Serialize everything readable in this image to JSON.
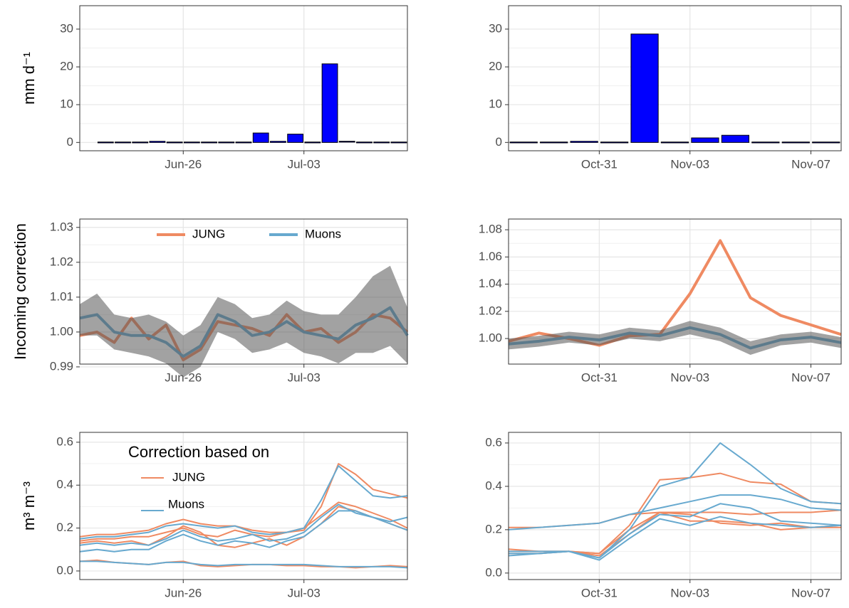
{
  "chart_data": [
    {
      "type": "bar",
      "ylabel": "mm d⁻¹",
      "grid": true,
      "color": "#0000ff",
      "border": "#000000",
      "xlim": [
        "Jun-20",
        "Jul-09"
      ],
      "xticks": [
        "Jun-26",
        "Jul-03"
      ],
      "ylim": [
        -2.2,
        36.2
      ],
      "yticks": [
        0,
        10,
        20,
        30
      ],
      "x": [
        "Jun-21",
        "Jun-22",
        "Jun-23",
        "Jun-24",
        "Jun-25",
        "Jun-26",
        "Jun-27",
        "Jun-28",
        "Jun-29",
        "Jun-30",
        "Jul-01",
        "Jul-02",
        "Jul-03",
        "Jul-04",
        "Jul-05",
        "Jul-06",
        "Jul-07",
        "Jul-08"
      ],
      "values": [
        0,
        0,
        0,
        0.3,
        0,
        0,
        0,
        0,
        0,
        2.5,
        0.3,
        2.2,
        0,
        20.8,
        0.2,
        0,
        0,
        0
      ]
    },
    {
      "type": "bar",
      "grid": true,
      "color": "#0000ff",
      "border": "#000000",
      "xlim": [
        "Oct-28",
        "Nov-08"
      ],
      "xticks": [
        "Oct-31",
        "Nov-03",
        "Nov-07"
      ],
      "ylim": [
        -2.2,
        36.2
      ],
      "yticks": [
        0,
        10,
        20,
        30
      ],
      "x": [
        "Oct-28",
        "Oct-29",
        "Oct-30",
        "Oct-31",
        "Nov-01",
        "Nov-02",
        "Nov-03",
        "Nov-04",
        "Nov-05",
        "Nov-06",
        "Nov-07"
      ],
      "values": [
        0,
        0,
        0.3,
        0,
        28.7,
        0,
        1.2,
        1.9,
        0,
        0,
        0
      ]
    },
    {
      "type": "ribbon-line",
      "ylabel": "Incoming correction",
      "grid": true,
      "legend": "top",
      "band_color": "#555555",
      "xlim": [
        "Jun-20",
        "Jul-09"
      ],
      "xticks": [
        "Jun-26",
        "Jul-03"
      ],
      "ylim": [
        0.9908,
        1.0324
      ],
      "yticks": [
        0.99,
        {
          "value": 1.0,
          "label": "1.00"
        },
        1.01,
        1.02,
        1.03
      ],
      "x": [
        "Jun-20",
        "Jun-21",
        "Jun-22",
        "Jun-23",
        "Jun-24",
        "Jun-25",
        "Jun-26",
        "Jun-27",
        "Jun-28",
        "Jun-29",
        "Jun-30",
        "Jul-01",
        "Jul-02",
        "Jul-03",
        "Jul-04",
        "Jul-05",
        "Jul-06",
        "Jul-07",
        "Jul-08",
        "Jul-09"
      ],
      "series": [
        {
          "name": "JUNG",
          "color": "#ef8a62",
          "values": [
            0.999,
            1.0,
            0.997,
            1.004,
            0.998,
            1.002,
            0.992,
            0.995,
            1.003,
            1.002,
            1.001,
            0.999,
            1.005,
            1.0,
            1.001,
            0.997,
            1.0,
            1.005,
            1.004,
            1.0
          ]
        },
        {
          "name": "Muons",
          "color": "#67a9cf",
          "values": [
            1.004,
            1.005,
            1.0,
            0.999,
            0.999,
            0.997,
            0.993,
            0.996,
            1.005,
            1.003,
            0.999,
            1.0,
            1.003,
            1.0,
            0.999,
            0.998,
            1.002,
            1.004,
            1.007,
            0.999
          ],
          "lower": [
            0.999,
            0.999,
            0.995,
            0.994,
            0.993,
            0.991,
            0.987,
            0.99,
            1.0,
            0.998,
            0.994,
            0.995,
            0.997,
            0.994,
            0.993,
            0.991,
            0.994,
            0.994,
            0.996,
            0.991
          ],
          "upper": [
            1.008,
            1.011,
            1.005,
            1.004,
            1.005,
            1.003,
            0.999,
            1.002,
            1.01,
            1.008,
            1.004,
            1.005,
            1.009,
            1.006,
            1.005,
            1.005,
            1.01,
            1.016,
            1.019,
            1.007
          ]
        }
      ]
    },
    {
      "type": "ribbon-line",
      "grid": true,
      "band_color": "#555555",
      "xlim": [
        "Oct-28",
        "Nov-08"
      ],
      "xticks": [
        "Oct-31",
        "Nov-03",
        "Nov-07"
      ],
      "ylim": [
        0.9812,
        1.0879
      ],
      "yticks": [
        {
          "value": 1.0,
          "label": "1.00"
        },
        1.02,
        1.04,
        1.06,
        1.08
      ],
      "x": [
        "Oct-28",
        "Oct-29",
        "Oct-30",
        "Oct-31",
        "Nov-01",
        "Nov-02",
        "Nov-03",
        "Nov-04",
        "Nov-05",
        "Nov-06",
        "Nov-07",
        "Nov-08"
      ],
      "series": [
        {
          "name": "JUNG",
          "color": "#ef8a62",
          "values": [
            0.998,
            1.004,
            1.0,
            0.995,
            1.002,
            1.003,
            1.033,
            1.072,
            1.03,
            1.017,
            1.01,
            1.003
          ]
        },
        {
          "name": "Muons",
          "color": "#67a9cf",
          "values": [
            0.996,
            0.998,
            1.001,
            0.999,
            1.004,
            1.002,
            1.008,
            1.003,
            0.993,
            0.999,
            1.001,
            0.997
          ],
          "lower": [
            0.992,
            0.994,
            0.997,
            0.995,
            1.0,
            0.998,
            1.003,
            0.998,
            0.988,
            0.995,
            0.997,
            0.993
          ],
          "upper": [
            1.0,
            1.002,
            1.005,
            1.003,
            1.008,
            1.006,
            1.013,
            1.008,
            0.998,
            1.003,
            1.005,
            1.001
          ]
        }
      ]
    },
    {
      "type": "multiline",
      "ylabel": "m³ m⁻³",
      "grid": true,
      "legend": "top-left",
      "legend_title": "Correction based on",
      "xlim": [
        "Jun-20",
        "Jul-09"
      ],
      "xticks": [
        "Jun-26",
        "Jul-03"
      ],
      "ylim": [
        -0.04,
        0.646
      ],
      "yticks": [
        {
          "value": 0,
          "label": "0.0"
        },
        0.2,
        0.4,
        0.6
      ],
      "x": [
        "Jun-20",
        "Jun-21",
        "Jun-22",
        "Jun-23",
        "Jun-24",
        "Jun-25",
        "Jun-26",
        "Jun-27",
        "Jun-28",
        "Jun-29",
        "Jun-30",
        "Jul-01",
        "Jul-02",
        "Jul-03",
        "Jul-04",
        "Jul-05",
        "Jul-06",
        "Jul-07",
        "Jul-08",
        "Jul-09"
      ],
      "series": [
        {
          "name": "JUNG",
          "color": "#ef8a62",
          "lines": [
            [
              0.045,
              0.05,
              0.04,
              0.035,
              0.03,
              0.04,
              0.045,
              0.025,
              0.02,
              0.025,
              0.03,
              0.03,
              0.025,
              0.025,
              0.02,
              0.02,
              0.015,
              0.02,
              0.025,
              0.02
            ],
            [
              0.16,
              0.17,
              0.17,
              0.18,
              0.19,
              0.22,
              0.24,
              0.22,
              0.21,
              0.21,
              0.19,
              0.18,
              0.18,
              0.19,
              0.3,
              0.5,
              0.45,
              0.38,
              0.36,
              0.34
            ],
            [
              0.13,
              0.14,
              0.13,
              0.14,
              0.12,
              0.16,
              0.21,
              0.18,
              0.12,
              0.11,
              0.13,
              0.15,
              0.12,
              0.16,
              0.22,
              0.3,
              0.28,
              0.25,
              0.22,
              0.19
            ],
            [
              0.14,
              0.15,
              0.15,
              0.16,
              0.16,
              0.18,
              0.2,
              0.17,
              0.16,
              0.19,
              0.17,
              0.16,
              0.18,
              0.2,
              0.26,
              0.32,
              0.3,
              0.27,
              0.24,
              0.2
            ]
          ]
        },
        {
          "name": "Muons",
          "color": "#67a9cf",
          "lines": [
            [
              0.045,
              0.045,
              0.04,
              0.035,
              0.03,
              0.04,
              0.04,
              0.03,
              0.025,
              0.03,
              0.03,
              0.03,
              0.03,
              0.03,
              0.025,
              0.02,
              0.02,
              0.02,
              0.02,
              0.015
            ],
            [
              0.15,
              0.16,
              0.16,
              0.17,
              0.18,
              0.21,
              0.22,
              0.21,
              0.2,
              0.21,
              0.18,
              0.17,
              0.18,
              0.2,
              0.33,
              0.49,
              0.42,
              0.35,
              0.34,
              0.35
            ],
            [
              0.09,
              0.1,
              0.09,
              0.1,
              0.1,
              0.14,
              0.17,
              0.14,
              0.12,
              0.14,
              0.13,
              0.11,
              0.14,
              0.16,
              0.22,
              0.28,
              0.28,
              0.25,
              0.23,
              0.25
            ],
            [
              0.12,
              0.13,
              0.12,
              0.13,
              0.12,
              0.15,
              0.19,
              0.16,
              0.14,
              0.15,
              0.17,
              0.14,
              0.15,
              0.18,
              0.25,
              0.31,
              0.27,
              0.25,
              0.22,
              0.19
            ]
          ]
        }
      ]
    },
    {
      "type": "multiline",
      "grid": true,
      "xlim": [
        "Oct-28",
        "Nov-08"
      ],
      "xticks": [
        "Oct-31",
        "Nov-03",
        "Nov-07"
      ],
      "ylim": [
        -0.03,
        0.649
      ],
      "yticks": [
        {
          "value": 0,
          "label": "0.0"
        },
        0.2,
        0.4,
        0.6
      ],
      "x": [
        "Oct-28",
        "Oct-29",
        "Oct-30",
        "Oct-31",
        "Nov-01",
        "Nov-02",
        "Nov-03",
        "Nov-04",
        "Nov-05",
        "Nov-06",
        "Nov-07",
        "Nov-08"
      ],
      "series": [
        {
          "name": "JUNG",
          "color": "#ef8a62",
          "lines": [
            [
              0.21,
              0.21,
              0.22,
              0.23,
              0.27,
              0.28,
              0.28,
              0.28,
              0.27,
              0.28,
              0.28,
              0.29
            ],
            [
              0.11,
              0.1,
              0.1,
              0.09,
              0.22,
              0.43,
              0.44,
              0.46,
              0.42,
              0.41,
              0.33,
              0.32
            ],
            [
              0.1,
              0.1,
              0.1,
              0.09,
              0.2,
              0.28,
              0.24,
              0.24,
              0.23,
              0.2,
              0.21,
              0.21
            ],
            [
              0.09,
              0.09,
              0.1,
              0.08,
              0.18,
              0.28,
              0.27,
              0.23,
              0.22,
              0.23,
              0.21,
              0.22
            ]
          ]
        },
        {
          "name": "Muons",
          "color": "#67a9cf",
          "lines": [
            [
              0.2,
              0.21,
              0.22,
              0.23,
              0.27,
              0.3,
              0.33,
              0.36,
              0.36,
              0.34,
              0.3,
              0.29
            ],
            [
              0.1,
              0.1,
              0.1,
              0.07,
              0.2,
              0.4,
              0.44,
              0.6,
              0.5,
              0.39,
              0.33,
              0.32
            ],
            [
              0.08,
              0.09,
              0.1,
              0.07,
              0.18,
              0.27,
              0.26,
              0.32,
              0.3,
              0.24,
              0.23,
              0.22
            ],
            [
              0.09,
              0.09,
              0.1,
              0.06,
              0.16,
              0.25,
              0.22,
              0.26,
              0.23,
              0.22,
              0.21,
              0.22
            ]
          ]
        }
      ]
    }
  ]
}
